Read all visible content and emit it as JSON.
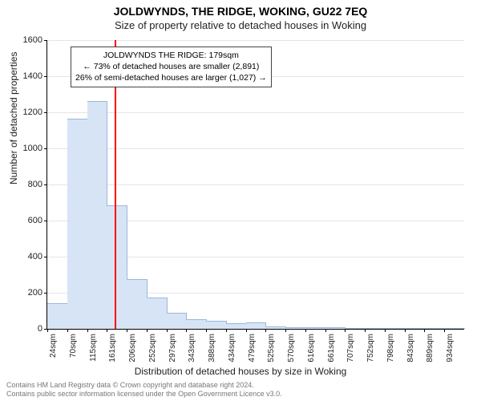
{
  "title": "JOLDWYNDS, THE RIDGE, WOKING, GU22 7EQ",
  "subtitle": "Size of property relative to detached houses in Woking",
  "ylabel": "Number of detached properties",
  "xlabel": "Distribution of detached houses by size in Woking",
  "chart": {
    "type": "histogram",
    "bar_fill": "#d6e4f5",
    "bar_stroke": "#9bb8dc",
    "background": "#ffffff",
    "grid_color": "#e5e5e5",
    "ylim": [
      0,
      1600
    ],
    "ytick_step": 200,
    "x_labels": [
      "24sqm",
      "70sqm",
      "115sqm",
      "161sqm",
      "206sqm",
      "252sqm",
      "297sqm",
      "343sqm",
      "388sqm",
      "434sqm",
      "479sqm",
      "525sqm",
      "570sqm",
      "616sqm",
      "661sqm",
      "707sqm",
      "752sqm",
      "798sqm",
      "843sqm",
      "889sqm",
      "934sqm"
    ],
    "values": [
      140,
      1160,
      1260,
      680,
      270,
      170,
      85,
      50,
      40,
      25,
      30,
      8,
      6,
      4,
      4,
      2,
      2,
      2,
      2,
      2,
      0
    ],
    "marker": {
      "position_sqm": 179,
      "color": "#ff0000"
    }
  },
  "annotation": {
    "line1": "JOLDWYNDS THE RIDGE: 179sqm",
    "line2": "← 73% of detached houses are smaller (2,891)",
    "line3": "26% of semi-detached houses are larger (1,027) →"
  },
  "footer": {
    "line1": "Contains HM Land Registry data © Crown copyright and database right 2024.",
    "line2": "Contains public sector information licensed under the Open Government Licence v3.0."
  },
  "fonts": {
    "title_size": 14,
    "subtitle_size": 13,
    "label_size": 12,
    "tick_size": 11,
    "xtick_size": 10,
    "anno_size": 10.5,
    "footer_size": 9
  }
}
